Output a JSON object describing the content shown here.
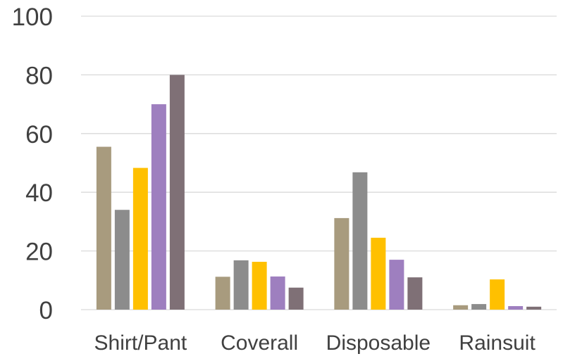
{
  "chart_data": {
    "type": "bar",
    "title": "",
    "xlabel": "",
    "ylabel": "",
    "categories": [
      "Shirt/Pant",
      "Coverall",
      "Disposable",
      "Rainsuit"
    ],
    "series": [
      {
        "values": [
          55.5,
          11.2,
          31.2,
          1.5
        ],
        "color": "#A89B7E"
      },
      {
        "values": [
          34.0,
          16.8,
          46.8,
          1.9
        ],
        "color": "#8C8C8C"
      },
      {
        "values": [
          48.3,
          16.3,
          24.5,
          10.3
        ],
        "color": "#FFC000"
      },
      {
        "values": [
          70.0,
          11.3,
          17.0,
          1.2
        ],
        "color": "#9E7FBF"
      },
      {
        "values": [
          80.0,
          7.5,
          11.0,
          1.0
        ],
        "color": "#7F7076"
      }
    ],
    "ylim": [
      0,
      100
    ],
    "yticks": [
      0,
      20,
      40,
      60,
      80,
      100
    ],
    "grid": true,
    "gridline_color": "#D9D9D9",
    "legend": "none"
  }
}
